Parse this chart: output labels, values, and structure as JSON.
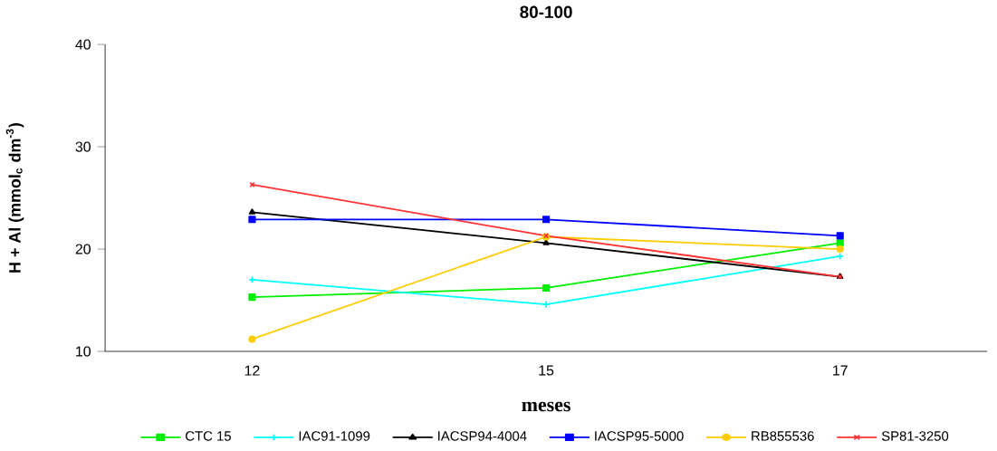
{
  "chart_data": {
    "type": "line",
    "title": "80-100",
    "xlabel": "meses",
    "ylabel": "H + Al (mmol$_{c}$ dm$^{-3}$)",
    "categories": [
      "12",
      "15",
      "17"
    ],
    "ylim": [
      10,
      40
    ],
    "yticks": [
      10,
      20,
      30,
      40
    ],
    "grid": false,
    "legend": "bottom",
    "series": [
      {
        "name": "CTC 15",
        "color": "#00ee00",
        "marker": "square",
        "values": [
          15.3,
          16.2,
          20.6
        ]
      },
      {
        "name": "IAC91-1099",
        "color": "#00ffff",
        "marker": "plus",
        "values": [
          17.0,
          14.6,
          19.3
        ]
      },
      {
        "name": "IACSP94-4004",
        "color": "#000000",
        "marker": "triangle",
        "values": [
          23.6,
          20.6,
          17.3
        ]
      },
      {
        "name": "IACSP95-5000",
        "color": "#0000ff",
        "marker": "square",
        "values": [
          22.9,
          22.9,
          21.3
        ]
      },
      {
        "name": "RB855536",
        "color": "#ffcc00",
        "marker": "circle",
        "values": [
          11.2,
          21.2,
          20.0
        ]
      },
      {
        "name": "SP81-3250",
        "color": "#ff3333",
        "marker": "cross",
        "values": [
          26.3,
          21.3,
          17.3
        ]
      }
    ]
  }
}
